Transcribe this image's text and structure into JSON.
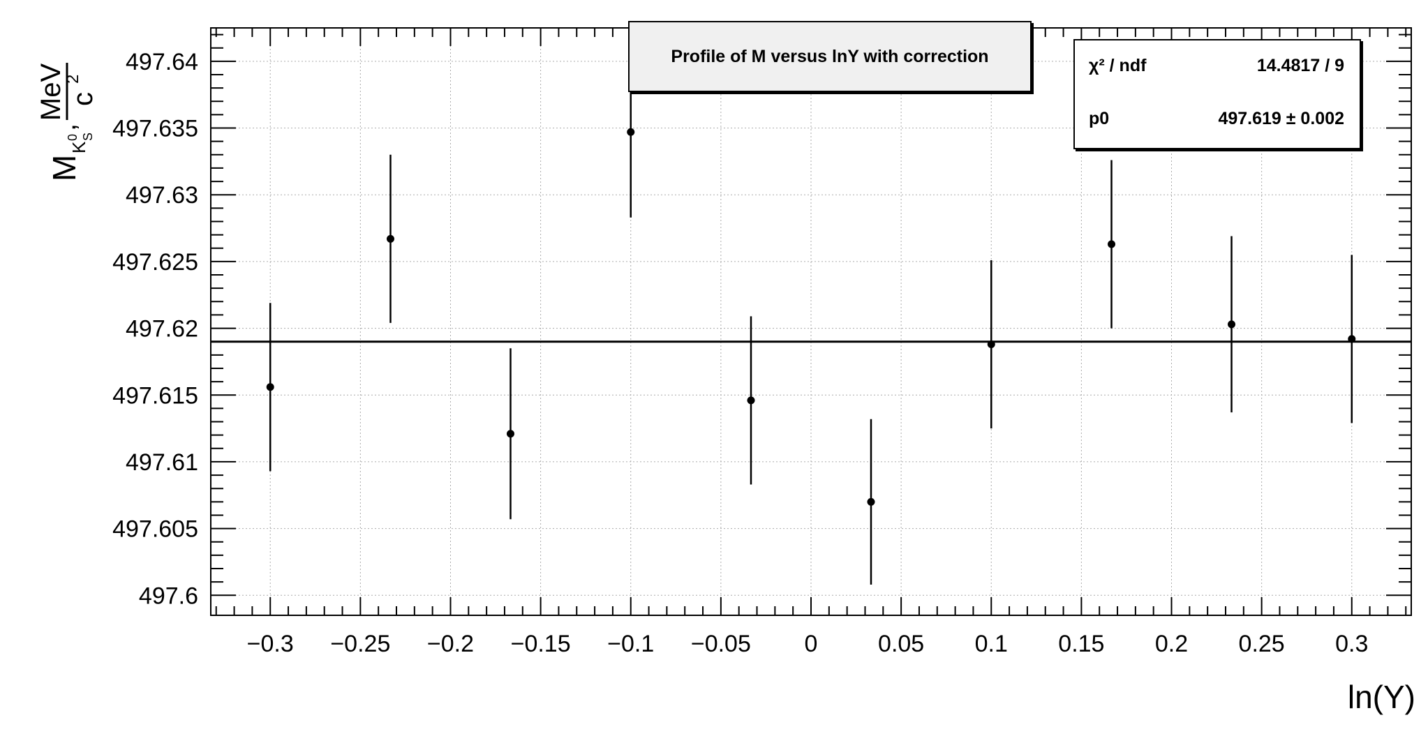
{
  "chart_data": {
    "type": "scatter",
    "title": "Profile of M versus lnY with correction",
    "xlabel": "ln(Y)",
    "ylabel_main": "M",
    "ylabel_sub": "K",
    "ylabel_sub_sup": "0",
    "ylabel_sub_sub": "S",
    "ylabel_unit_num": "MeV",
    "ylabel_unit_den": "c",
    "ylabel_unit_den_sup": "2",
    "xlim": [
      -0.333,
      0.333
    ],
    "ylim": [
      497.5985,
      497.6425
    ],
    "xticks": [
      "−0.3",
      "−0.25",
      "−0.2",
      "−0.15",
      "−0.1",
      "−0.05",
      "0",
      "0.05",
      "0.1",
      "0.15",
      "0.2",
      "0.25",
      "0.3"
    ],
    "xtick_values": [
      -0.3,
      -0.25,
      -0.2,
      -0.15,
      -0.1,
      -0.05,
      0,
      0.05,
      0.1,
      0.15,
      0.2,
      0.25,
      0.3
    ],
    "yticks": [
      "497.6",
      "497.605",
      "497.61",
      "497.615",
      "497.62",
      "497.625",
      "497.63",
      "497.635",
      "497.64"
    ],
    "ytick_values": [
      497.6,
      497.605,
      497.61,
      497.615,
      497.62,
      497.625,
      497.63,
      497.635,
      497.64
    ],
    "grid": true,
    "points": [
      {
        "x": -0.3,
        "y": 497.6156,
        "err": 0.0063
      },
      {
        "x": -0.2333,
        "y": 497.6267,
        "err": 0.0063
      },
      {
        "x": -0.1667,
        "y": 497.6121,
        "err": 0.0064
      },
      {
        "x": -0.1,
        "y": 497.6347,
        "err": 0.0064
      },
      {
        "x": -0.0333,
        "y": 497.6146,
        "err": 0.0063
      },
      {
        "x": 0.0333,
        "y": 497.607,
        "err": 0.0062
      },
      {
        "x": 0.1,
        "y": 497.6188,
        "err": 0.0063
      },
      {
        "x": 0.1667,
        "y": 497.6263,
        "err": 0.0063
      },
      {
        "x": 0.2333,
        "y": 497.6203,
        "err": 0.0066
      },
      {
        "x": 0.3,
        "y": 497.6192,
        "err": 0.0063
      }
    ],
    "fit": {
      "y": 497.619,
      "label": "p0"
    }
  },
  "stats": {
    "chi2_label": "χ² / ndf",
    "chi2_value": "14.4817 / 9",
    "p0_label": "p0",
    "p0_value": "497.619 ± 0.002"
  }
}
